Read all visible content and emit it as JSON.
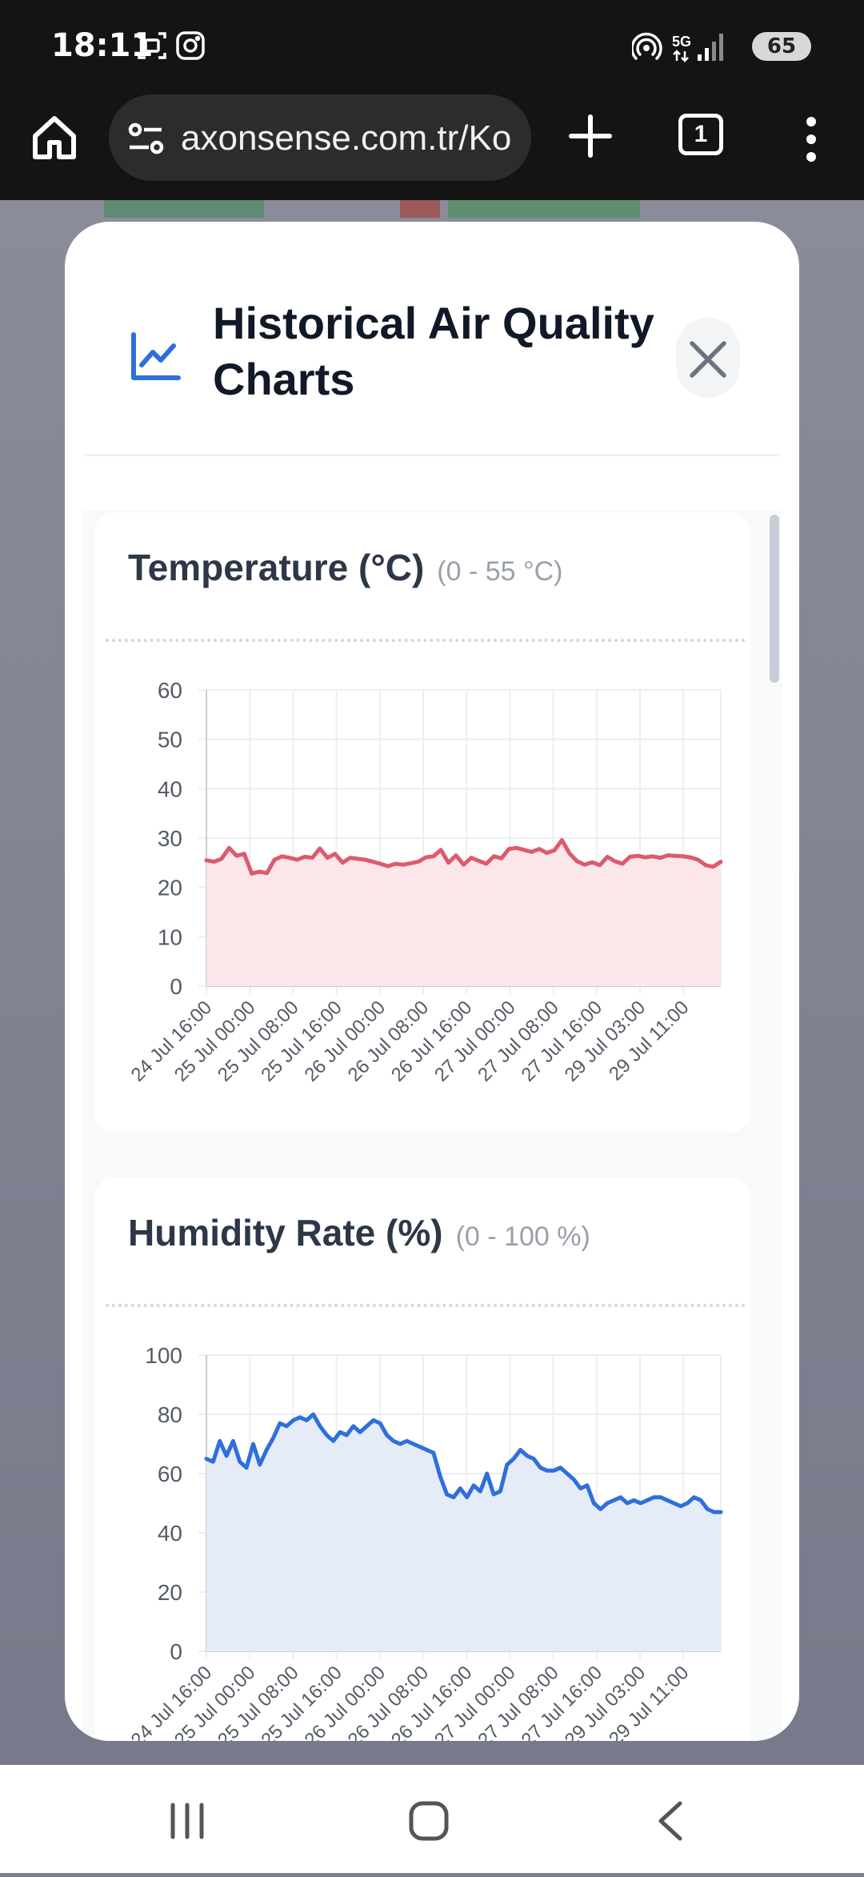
{
  "status_bar": {
    "time": "18:11",
    "network": "5G",
    "battery": "65",
    "icons": [
      "screenshot-icon",
      "instagram-icon",
      "hotspot-icon",
      "signal-icon"
    ]
  },
  "browser": {
    "url": "axonsense.com.tr/Ko",
    "tab_count": "1",
    "icons": [
      "home-icon",
      "site-settings-icon",
      "plus-icon",
      "tabs-icon",
      "more-vert-icon"
    ]
  },
  "modal": {
    "title": "Historical Air Quality Charts",
    "icons": [
      "chart-line-icon",
      "close-icon"
    ]
  },
  "charts": {
    "temperature": {
      "title": "Temperature (°C)",
      "range": "(0 - 55 °C)"
    },
    "humidity": {
      "title": "Humidity Rate (%)",
      "range": "(0 - 100 %)"
    }
  },
  "chart_data": [
    {
      "type": "area",
      "title": "Temperature (°C)",
      "subtitle": "(0 - 55 °C)",
      "ylim": [
        0,
        60
      ],
      "yticks": [
        0,
        10,
        20,
        30,
        40,
        50,
        60
      ],
      "x_tick_labels": [
        "24 Jul 16:00",
        "25 Jul 00:00",
        "25 Jul 08:00",
        "25 Jul 16:00",
        "26 Jul 00:00",
        "26 Jul 08:00",
        "26 Jul 16:00",
        "27 Jul 00:00",
        "27 Jul 08:00",
        "27 Jul 16:00",
        "29 Jul 03:00",
        "29 Jul 11:00"
      ],
      "grid": true,
      "color": "#dc5b6c",
      "fill": "#fbe6ea",
      "values": [
        25.5,
        25.2,
        25.8,
        28.0,
        26.4,
        26.8,
        22.8,
        23.2,
        22.9,
        25.6,
        26.3,
        26.0,
        25.6,
        26.2,
        26.0,
        27.9,
        26.0,
        26.8,
        25.0,
        26.0,
        25.8,
        25.6,
        25.2,
        24.8,
        24.3,
        24.8,
        24.6,
        24.9,
        25.2,
        26.1,
        26.3,
        27.6,
        25.0,
        26.5,
        24.6,
        26.0,
        25.4,
        24.8,
        26.3,
        25.9,
        27.8,
        28.0,
        27.6,
        27.2,
        27.8,
        27.0,
        27.5,
        29.6,
        26.9,
        25.3,
        24.6,
        25.1,
        24.5,
        26.2,
        25.3,
        24.8,
        26.2,
        26.4,
        26.1,
        26.3,
        26.0,
        26.5,
        26.4,
        26.3,
        26.1,
        25.6,
        24.5,
        24.2,
        25.2
      ]
    },
    {
      "type": "area",
      "title": "Humidity Rate (%)",
      "subtitle": "(0 - 100 %)",
      "ylim": [
        0,
        100
      ],
      "yticks": [
        0,
        20,
        40,
        60,
        80,
        100
      ],
      "grid": true,
      "color": "#2f6fdc",
      "fill": "#e5ecf8",
      "values": [
        65,
        64,
        71,
        66,
        71,
        64,
        62,
        70,
        63,
        68,
        72,
        77,
        76,
        78,
        79,
        78,
        80,
        76,
        73,
        71,
        74,
        73,
        76,
        74,
        76,
        78,
        77,
        73,
        71,
        70,
        71,
        70,
        69,
        68,
        67,
        59,
        53,
        52,
        55,
        52,
        56,
        54,
        60,
        53,
        54,
        63,
        65,
        68,
        66,
        65,
        62,
        61,
        61,
        62,
        60,
        58,
        55,
        56,
        50,
        48,
        50,
        51,
        52,
        50,
        51,
        50,
        51,
        52,
        52,
        51,
        50,
        49,
        50,
        52,
        51,
        48,
        47,
        47
      ]
    }
  ]
}
